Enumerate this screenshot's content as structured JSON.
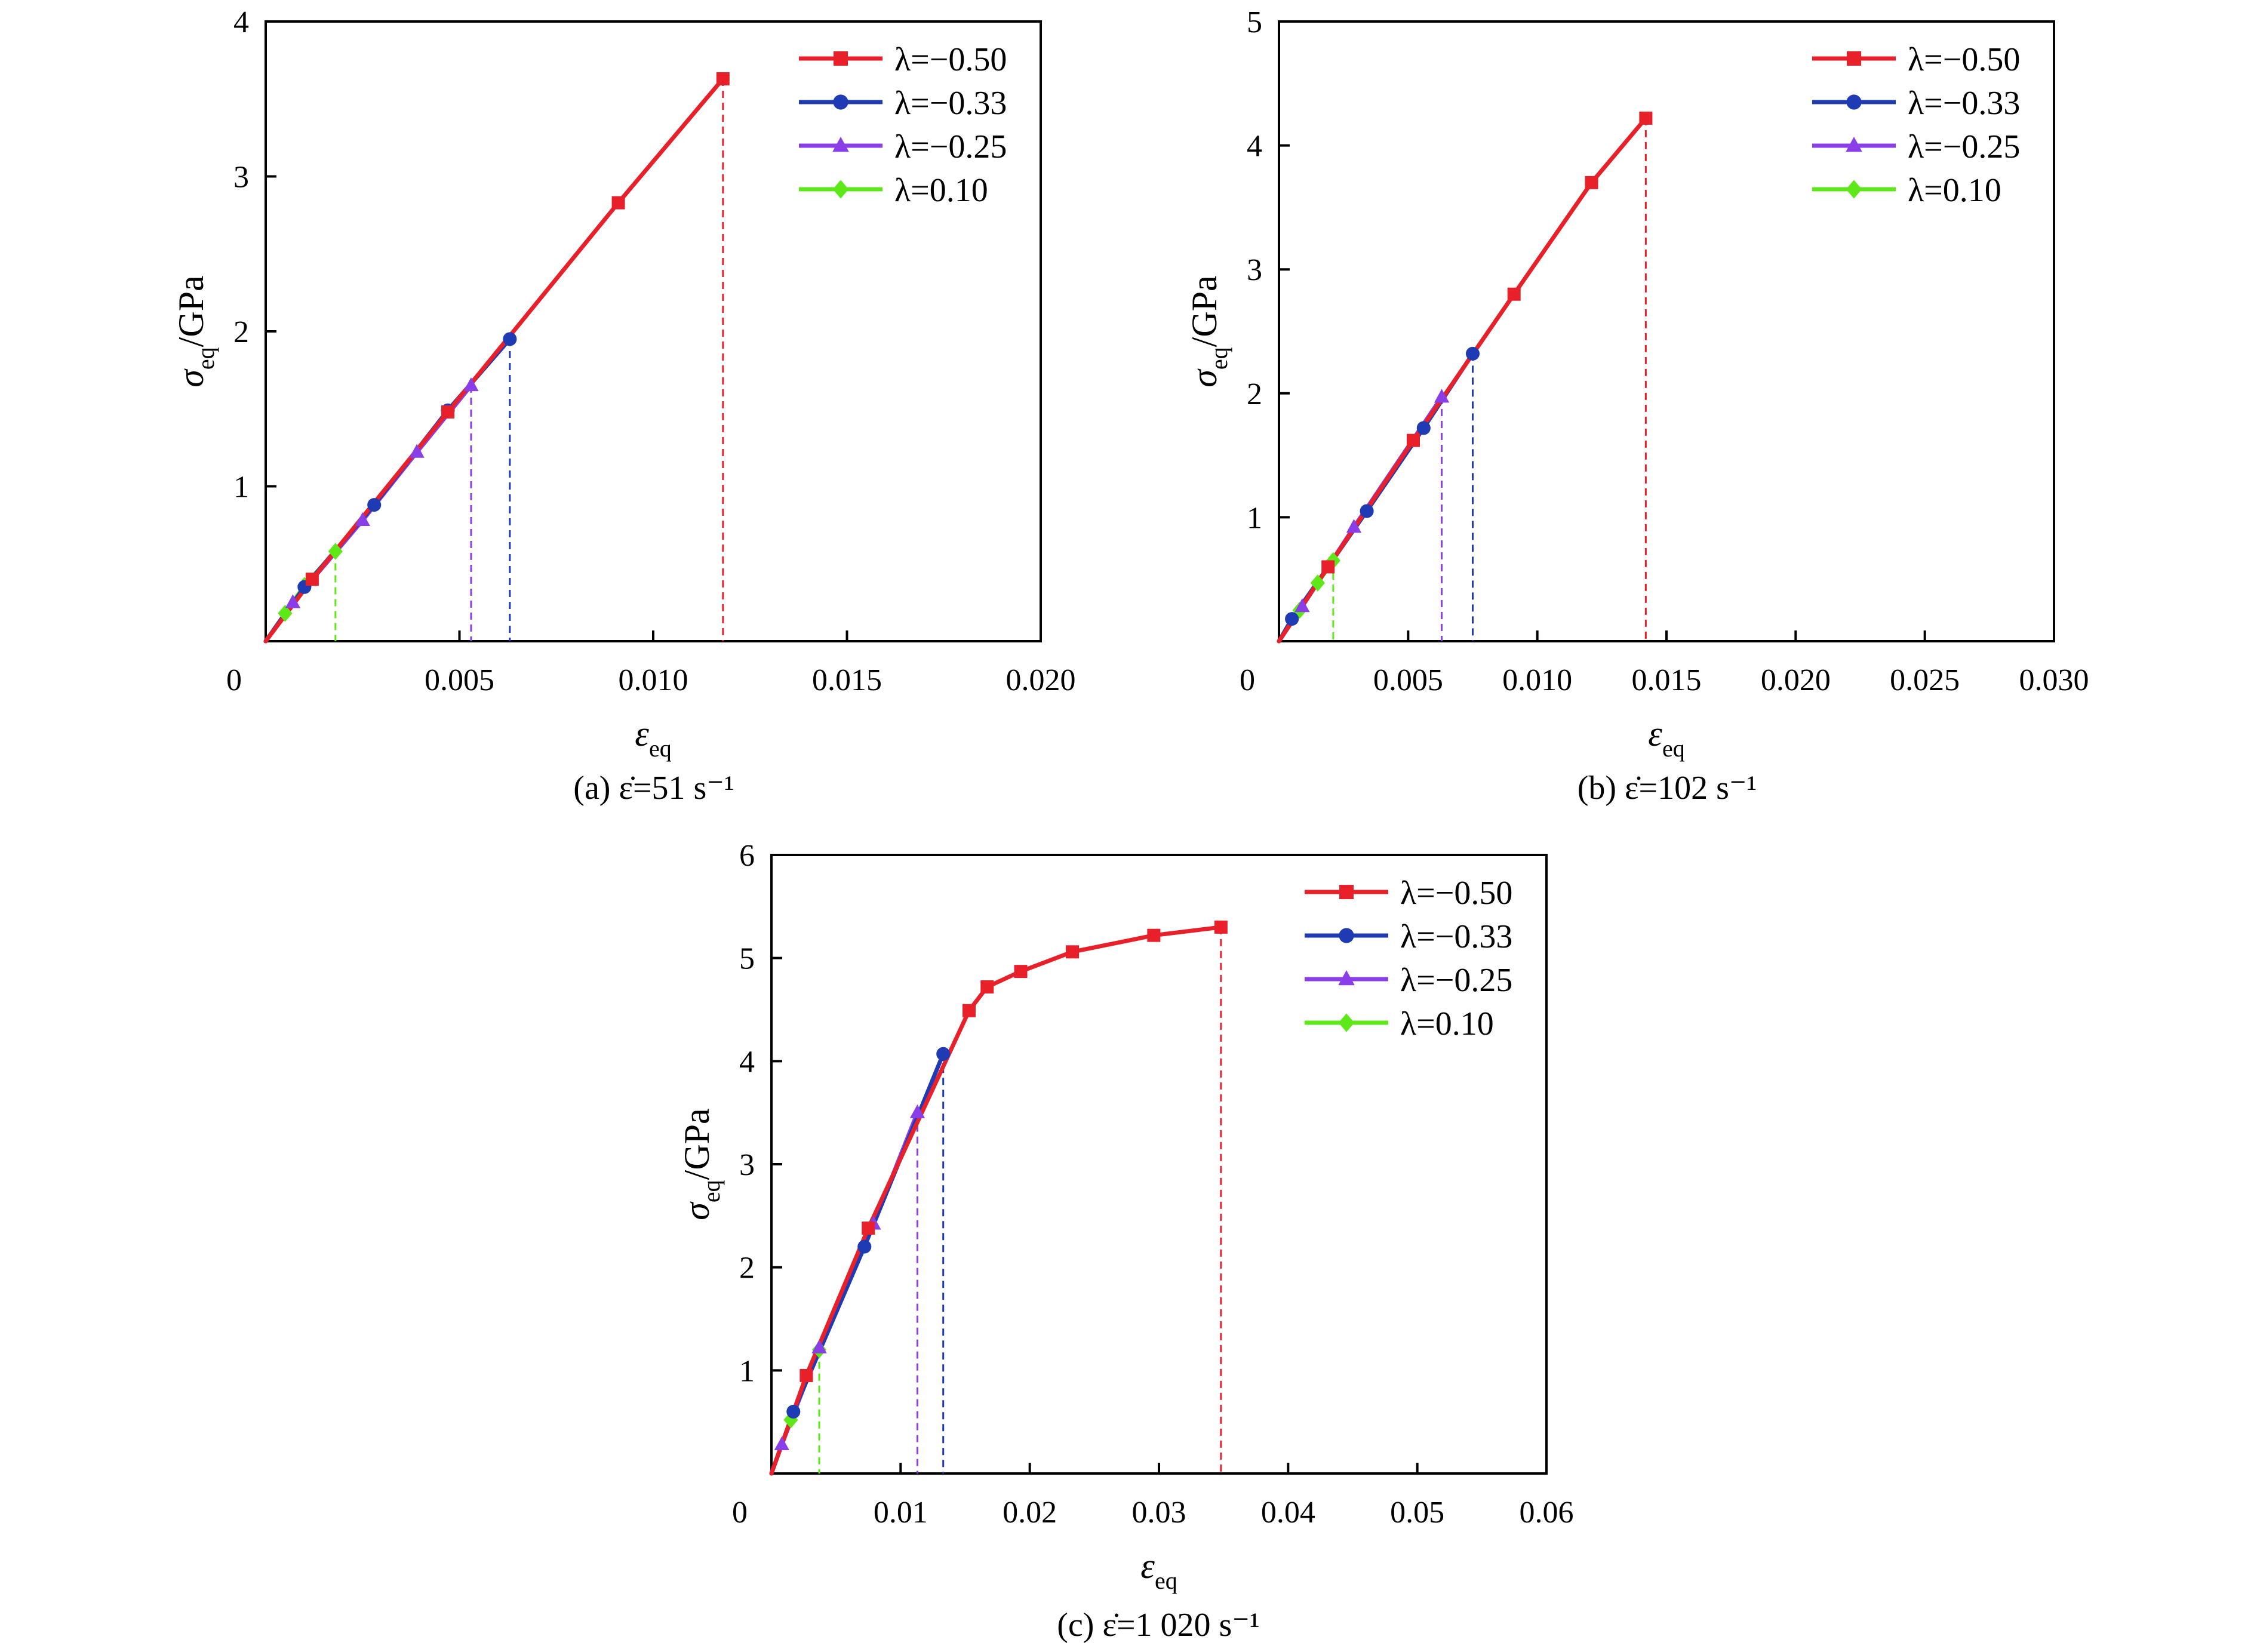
{
  "chart_data": [
    {
      "type": "line",
      "caption": "(a) ε̇=51 s⁻¹",
      "xlabel": "ε",
      "xlabel_sub": "eq",
      "ylabel": "σ",
      "ylabel_sub": "eq",
      "ylabel_unit": "/GPa",
      "xlim": [
        0,
        0.02
      ],
      "ylim": [
        0,
        4
      ],
      "xticks": [
        0.005,
        0.01,
        0.015,
        0.02
      ],
      "xtick_labels": [
        "0.005",
        "0.010",
        "0.015",
        "0.020"
      ],
      "yticks": [
        1,
        2,
        3,
        4
      ],
      "ytick_labels": [
        "1",
        "2",
        "3",
        "4"
      ],
      "origin_label": "0",
      "legend_position": "top-right",
      "series": [
        {
          "name": "λ=−0.50",
          "color": "#e8202a",
          "marker": "square",
          "x": [
            0,
            0.0012,
            0.0047,
            0.0091,
            0.0118
          ],
          "y": [
            0,
            0.4,
            1.48,
            2.83,
            3.63
          ],
          "failure_x": 0.0118
        },
        {
          "name": "λ=−0.33",
          "color": "#1f3bb3",
          "marker": "circle",
          "x": [
            0,
            0.001,
            0.0028,
            0.0047,
            0.0063
          ],
          "y": [
            0,
            0.35,
            0.88,
            1.49,
            1.95
          ],
          "failure_x": 0.0063
        },
        {
          "name": "λ=−0.25",
          "color": "#8a3ee8",
          "marker": "triangle",
          "x": [
            0,
            0.0007,
            0.0025,
            0.0039,
            0.0053
          ],
          "y": [
            0,
            0.25,
            0.78,
            1.22,
            1.65
          ],
          "failure_x": 0.0053
        },
        {
          "name": "λ=0.10",
          "color": "#5ee81a",
          "marker": "diamond",
          "x": [
            0,
            0.0005,
            0.001,
            0.0018
          ],
          "y": [
            0,
            0.18,
            0.36,
            0.58
          ],
          "failure_x": 0.0018
        }
      ]
    },
    {
      "type": "line",
      "caption": "(b) ε̇=102 s⁻¹",
      "xlabel": "ε",
      "xlabel_sub": "eq",
      "ylabel": "σ",
      "ylabel_sub": "eq",
      "ylabel_unit": "/GPa",
      "xlim": [
        0,
        0.03
      ],
      "ylim": [
        0,
        5
      ],
      "xticks": [
        0.005,
        0.01,
        0.015,
        0.02,
        0.025,
        0.03
      ],
      "xtick_labels": [
        "0.005",
        "0.010",
        "0.015",
        "0.020",
        "0.025",
        "0.030"
      ],
      "yticks": [
        1,
        2,
        3,
        4,
        5
      ],
      "ytick_labels": [
        "1",
        "2",
        "3",
        "4",
        "5"
      ],
      "origin_label": "0",
      "legend_position": "top-right",
      "series": [
        {
          "name": "λ=−0.50",
          "color": "#e8202a",
          "marker": "square",
          "x": [
            0,
            0.0019,
            0.0052,
            0.0091,
            0.0121,
            0.0142
          ],
          "y": [
            0,
            0.6,
            1.62,
            2.8,
            3.7,
            4.22
          ],
          "failure_x": 0.0142
        },
        {
          "name": "λ=−0.33",
          "color": "#1f3bb3",
          "marker": "circle",
          "x": [
            0,
            0.0005,
            0.0034,
            0.0056,
            0.0075
          ],
          "y": [
            0,
            0.18,
            1.05,
            1.72,
            2.32
          ],
          "failure_x": 0.0075
        },
        {
          "name": "λ=−0.25",
          "color": "#8a3ee8",
          "marker": "triangle",
          "x": [
            0,
            0.0009,
            0.0029,
            0.0063
          ],
          "y": [
            0,
            0.28,
            0.92,
            1.97
          ],
          "failure_x": 0.0063
        },
        {
          "name": "λ=0.10",
          "color": "#5ee81a",
          "marker": "diamond",
          "x": [
            0,
            0.0008,
            0.0015,
            0.0021
          ],
          "y": [
            0,
            0.25,
            0.47,
            0.65
          ],
          "failure_x": 0.0021
        }
      ]
    },
    {
      "type": "line",
      "caption": "(c) ε̇=1 020 s⁻¹",
      "xlabel": "ε",
      "xlabel_sub": "eq",
      "ylabel": "σ",
      "ylabel_sub": "eq",
      "ylabel_unit": "/GPa",
      "xlim": [
        0,
        0.06
      ],
      "ylim": [
        0,
        6
      ],
      "xticks": [
        0.01,
        0.02,
        0.03,
        0.04,
        0.05,
        0.06
      ],
      "xtick_labels": [
        "0.01",
        "0.02",
        "0.03",
        "0.04",
        "0.05",
        "0.06"
      ],
      "yticks": [
        1,
        2,
        3,
        4,
        5,
        6
      ],
      "ytick_labels": [
        "1",
        "2",
        "3",
        "4",
        "5",
        "6"
      ],
      "origin_label": "0",
      "legend_position": "top-right",
      "series": [
        {
          "name": "λ=−0.50",
          "color": "#e8202a",
          "marker": "square",
          "x": [
            0,
            0.0027,
            0.0075,
            0.0153,
            0.0167,
            0.0193,
            0.0233,
            0.0296,
            0.0348
          ],
          "y": [
            0,
            0.95,
            2.38,
            4.49,
            4.72,
            4.87,
            5.06,
            5.22,
            5.3
          ],
          "failure_x": 0.0348
        },
        {
          "name": "λ=−0.33",
          "color": "#1f3bb3",
          "marker": "circle",
          "x": [
            0,
            0.0017,
            0.0072,
            0.0133
          ],
          "y": [
            0,
            0.6,
            2.2,
            4.07
          ],
          "failure_x": 0.0133
        },
        {
          "name": "λ=−0.25",
          "color": "#8a3ee8",
          "marker": "triangle",
          "x": [
            0,
            0.0008,
            0.0037,
            0.0079,
            0.0113
          ],
          "y": [
            0,
            0.28,
            1.22,
            2.42,
            3.5
          ],
          "failure_x": 0.0113
        },
        {
          "name": "λ=0.10",
          "color": "#5ee81a",
          "marker": "diamond",
          "x": [
            0,
            0.0015,
            0.0037
          ],
          "y": [
            0,
            0.52,
            1.2
          ],
          "failure_x": 0.0037
        }
      ]
    }
  ]
}
